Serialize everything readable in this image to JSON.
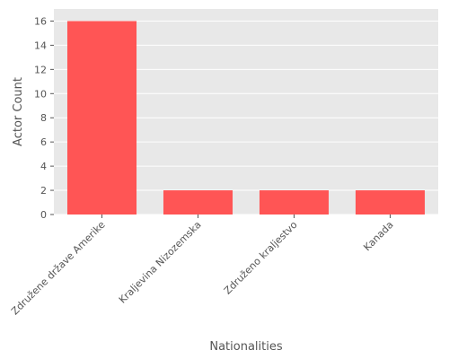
{
  "chart_data": {
    "type": "bar",
    "categories": [
      "Združene države Amerike",
      "Kraljevina Nizozemska",
      "Združeno kraljestvo",
      "Kanada"
    ],
    "values": [
      16,
      2,
      2,
      2
    ],
    "xlabel": "Nationalities",
    "ylabel": "Actor Count",
    "ylim": [
      0,
      17
    ],
    "yticks": [
      0,
      2,
      4,
      6,
      8,
      10,
      12,
      14,
      16
    ],
    "bar_color": "#ff5555",
    "background_color": "#e8e8e8",
    "grid_color": "#ffffff",
    "grid": true
  }
}
